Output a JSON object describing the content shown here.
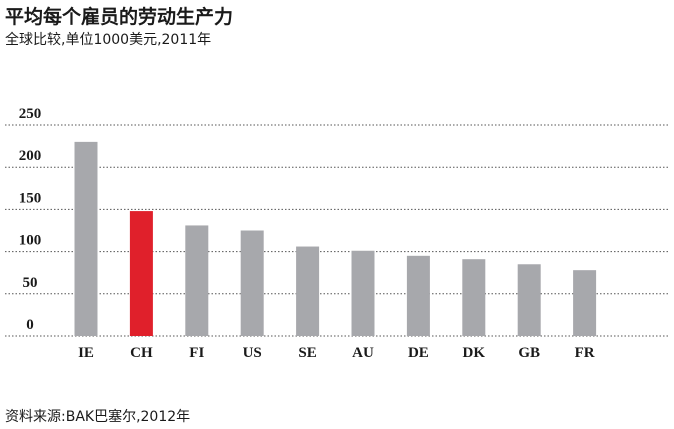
{
  "title": "平均每个雇员的劳动生产力",
  "subtitle": "全球比较,单位1000美元,2011年",
  "source": "资料来源:BAK巴塞尔,2012年",
  "colors": {
    "default_bar": "#a7a8ac",
    "highlight_bar": "#e0202b",
    "grid": "#555555"
  },
  "chart_data": {
    "type": "bar",
    "categories": [
      "IE",
      "CH",
      "FI",
      "US",
      "SE",
      "AU",
      "DE",
      "DK",
      "GB",
      "FR"
    ],
    "values": [
      230,
      148,
      131,
      125,
      106,
      101,
      95,
      91,
      85,
      78
    ],
    "highlight": "CH",
    "yticks": [
      0,
      50,
      100,
      150,
      200,
      250
    ],
    "ylim": [
      0,
      250
    ],
    "grid": true
  }
}
